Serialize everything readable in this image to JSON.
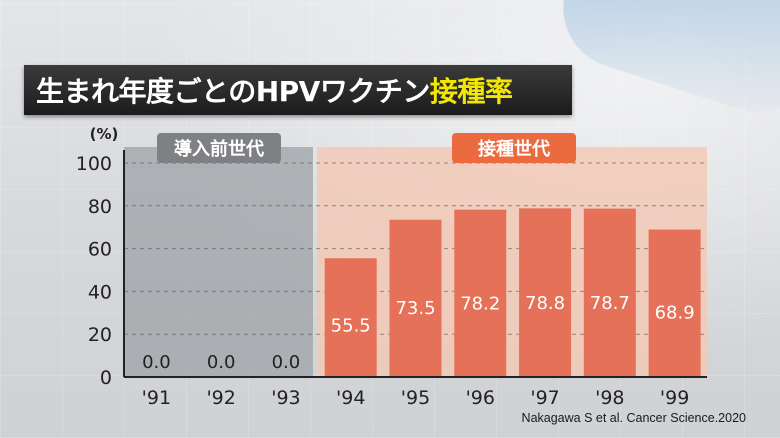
{
  "title": {
    "part1": "生まれ年度ごとのHPVワクチン",
    "part2": "接種率"
  },
  "unit_label": "(%)",
  "region_labels": {
    "pre": "導入前世代",
    "post": "接種世代"
  },
  "source": "Nakagawa S et al. Cancer Science.2020",
  "colors": {
    "bar": "#e57159",
    "pre_region": "#9ea1a5",
    "post_region": "#f2c9b6",
    "post_badge": "#ec6a3f",
    "pre_badge": "#7e8084",
    "title_accent": "#f3e600"
  },
  "chart_data": {
    "type": "bar",
    "categories": [
      "'91",
      "'92",
      "'93",
      "'94",
      "'95",
      "'96",
      "'97",
      "'98",
      "'99"
    ],
    "values": [
      0.0,
      0.0,
      0.0,
      55.5,
      73.5,
      78.2,
      78.8,
      78.7,
      68.9
    ],
    "data_labels": [
      "0.0",
      "0.0",
      "0.0",
      "55.5",
      "73.5",
      "78.2",
      "78.8",
      "78.7",
      "68.9"
    ],
    "title": "生まれ年度ごとのHPVワクチン接種率",
    "xlabel": "",
    "ylabel": "(%)",
    "ylim": [
      0,
      100
    ],
    "yticks": [
      "0",
      "20",
      "40",
      "60",
      "80",
      "100"
    ],
    "grid": true
  }
}
